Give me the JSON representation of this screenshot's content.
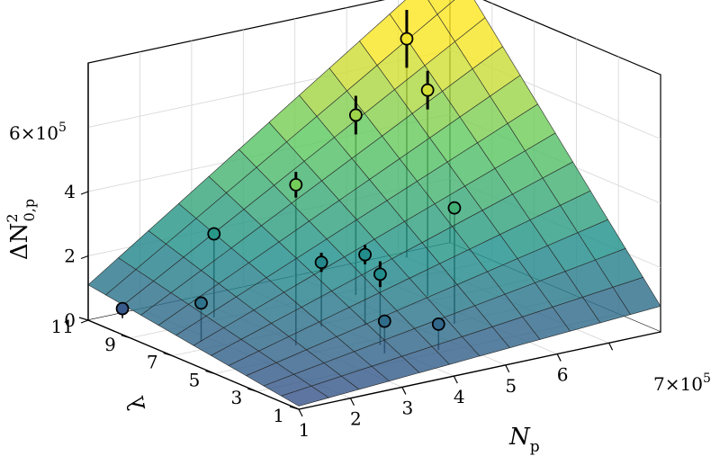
{
  "chart_data": {
    "type": "surface3d-scatter",
    "title": "",
    "x_axis": {
      "label": "N",
      "label_sub": "p",
      "ticks": [
        "1",
        "2",
        "3",
        "4",
        "5",
        "6",
        "7"
      ],
      "multiplier": "×10",
      "exponent": "5",
      "range": [
        1,
        7
      ]
    },
    "y_axis": {
      "label": "λ",
      "ticks": [
        "1",
        "3",
        "5",
        "7",
        "9",
        "11"
      ],
      "range": [
        1,
        11
      ]
    },
    "z_axis": {
      "label_base": "ΔN",
      "label_sup": "2",
      "label_sub": "0,p",
      "ticks": [
        "0",
        "2",
        "4",
        "6"
      ],
      "multiplier": "×10",
      "exponent": "5",
      "range": [
        0,
        8
      ]
    },
    "surface": {
      "description_formula": "z ≈ N_p × λ / 10",
      "colormap": [
        "#3b528b",
        "#21918c",
        "#5ec962",
        "#fde725"
      ]
    },
    "points": [
      {
        "x": 1.5,
        "y": 10.6,
        "z": 0.3,
        "err": 0.15
      },
      {
        "x": 1.8,
        "y": 7.6,
        "z": 1.2,
        "err": 0.15
      },
      {
        "x": 2.7,
        "y": 9.2,
        "z": 2.6,
        "err": 0.2
      },
      {
        "x": 2.9,
        "y": 5.8,
        "z": 5.0,
        "err": 0.4
      },
      {
        "x": 3.8,
        "y": 6.8,
        "z": 2.0,
        "err": 0.3
      },
      {
        "x": 3.8,
        "y": 3.8,
        "z": 1.0,
        "err": 0.15
      },
      {
        "x": 4.0,
        "y": 4.5,
        "z": 2.2,
        "err": 0.4
      },
      {
        "x": 4.4,
        "y": 6.2,
        "z": 2.2,
        "err": 0.3
      },
      {
        "x": 4.6,
        "y": 3.2,
        "z": 0.8,
        "err": 0.2
      },
      {
        "x": 5.2,
        "y": 8.6,
        "z": 5.6,
        "err": 0.6
      },
      {
        "x": 5.6,
        "y": 4.9,
        "z": 3.6,
        "err": 0.15
      },
      {
        "x": 6.1,
        "y": 7.4,
        "z": 6.4,
        "err": 0.6
      },
      {
        "x": 7.0,
        "y": 10.6,
        "z": 6.8,
        "err": 0.9
      }
    ]
  }
}
